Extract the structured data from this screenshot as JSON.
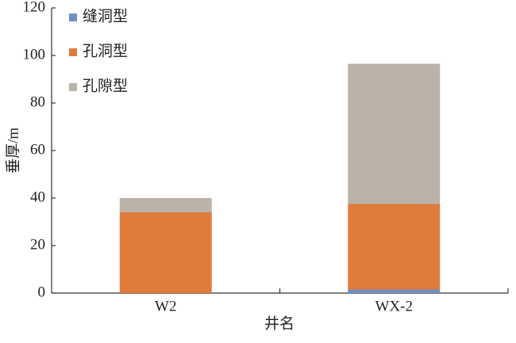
{
  "chart_data": {
    "type": "stacked_bar",
    "x_label": "井名",
    "y_label": "垂厚/m",
    "categories": [
      "W2",
      "WX-2"
    ],
    "series": [
      {
        "name": "缝洞型",
        "color": "#6f8fc4",
        "values": [
          0,
          1.5
        ]
      },
      {
        "name": "孔洞型",
        "color": "#e07b3c",
        "values": [
          34,
          36
        ]
      },
      {
        "name": "孔隙型",
        "color": "#bbb2a9",
        "values": [
          6,
          59
        ]
      }
    ],
    "ylim": [
      0,
      120
    ],
    "yticks": [
      0,
      20,
      40,
      60,
      80,
      100,
      120
    ],
    "legend": "upper-left"
  }
}
